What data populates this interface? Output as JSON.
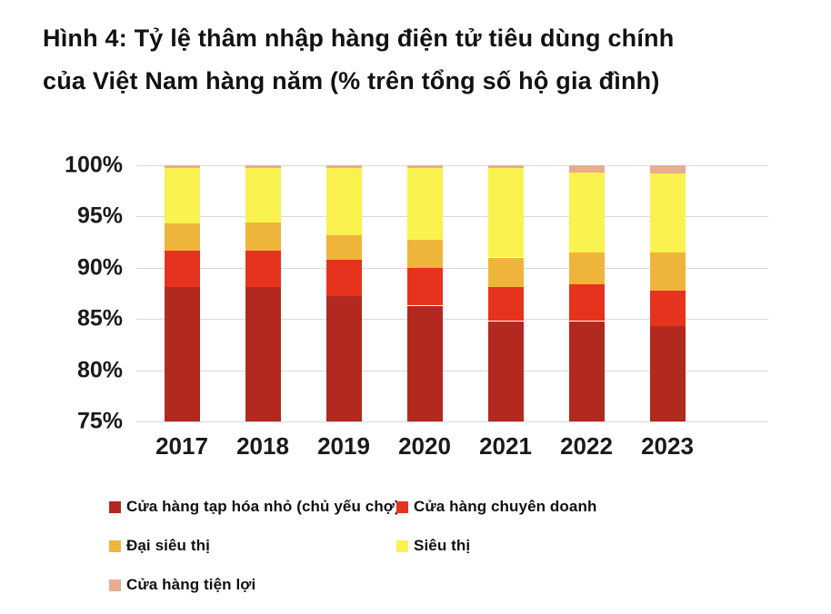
{
  "figure": {
    "title_line1": "Hình 4: Tỷ lệ thâm nhập hàng điện tử tiêu dùng chính",
    "title_line2": "của Việt Nam hàng năm (% trên tổng số hộ gia đình)"
  },
  "y_axis": {
    "ticks": [
      {
        "label": "100%",
        "value": 100
      },
      {
        "label": "95%",
        "value": 95
      },
      {
        "label": "90%",
        "value": 90
      },
      {
        "label": "85%",
        "value": 85
      },
      {
        "label": "80%",
        "value": 80
      },
      {
        "label": "75%",
        "value": 75
      }
    ]
  },
  "chart_data": {
    "type": "bar",
    "stacked": true,
    "title": "Hình 4: Tỷ lệ thâm nhập hàng điện tử tiêu dùng chính của Việt Nam hàng năm (% trên tổng số hộ gia đình)",
    "xlabel": "",
    "ylabel": "",
    "ylim": [
      75,
      100
    ],
    "grid": true,
    "legend_position": "bottom",
    "categories": [
      "2017",
      "2018",
      "2019",
      "2020",
      "2021",
      "2022",
      "2023"
    ],
    "series": [
      {
        "name": "Cửa hàng tạp hóa nhỏ (chủ yếu chợ)",
        "color": "#B3291F",
        "values": [
          88.1,
          88.1,
          87.2,
          86.3,
          84.8,
          84.8,
          84.3
        ]
      },
      {
        "name": "Cửa hàng chuyên doanh",
        "color": "#E6331E",
        "values": [
          3.6,
          3.6,
          3.6,
          3.7,
          3.3,
          3.6,
          3.5
        ]
      },
      {
        "name": "Đại siêu thị",
        "color": "#EFB53A",
        "values": [
          2.6,
          2.7,
          2.4,
          2.7,
          2.9,
          3.1,
          3.7
        ]
      },
      {
        "name": "Siêu thị",
        "color": "#FAF24E",
        "values": [
          5.4,
          5.3,
          6.5,
          7.0,
          8.7,
          7.8,
          7.7
        ]
      },
      {
        "name": "Cửa hàng tiện lợi",
        "color": "#E8AC90",
        "values": [
          0.3,
          0.3,
          0.3,
          0.3,
          0.3,
          0.7,
          0.8
        ]
      }
    ],
    "colors": {
      "gridline": "#D9D9D9",
      "text": "#1A1A1A",
      "background": "#FFFFFF"
    }
  }
}
